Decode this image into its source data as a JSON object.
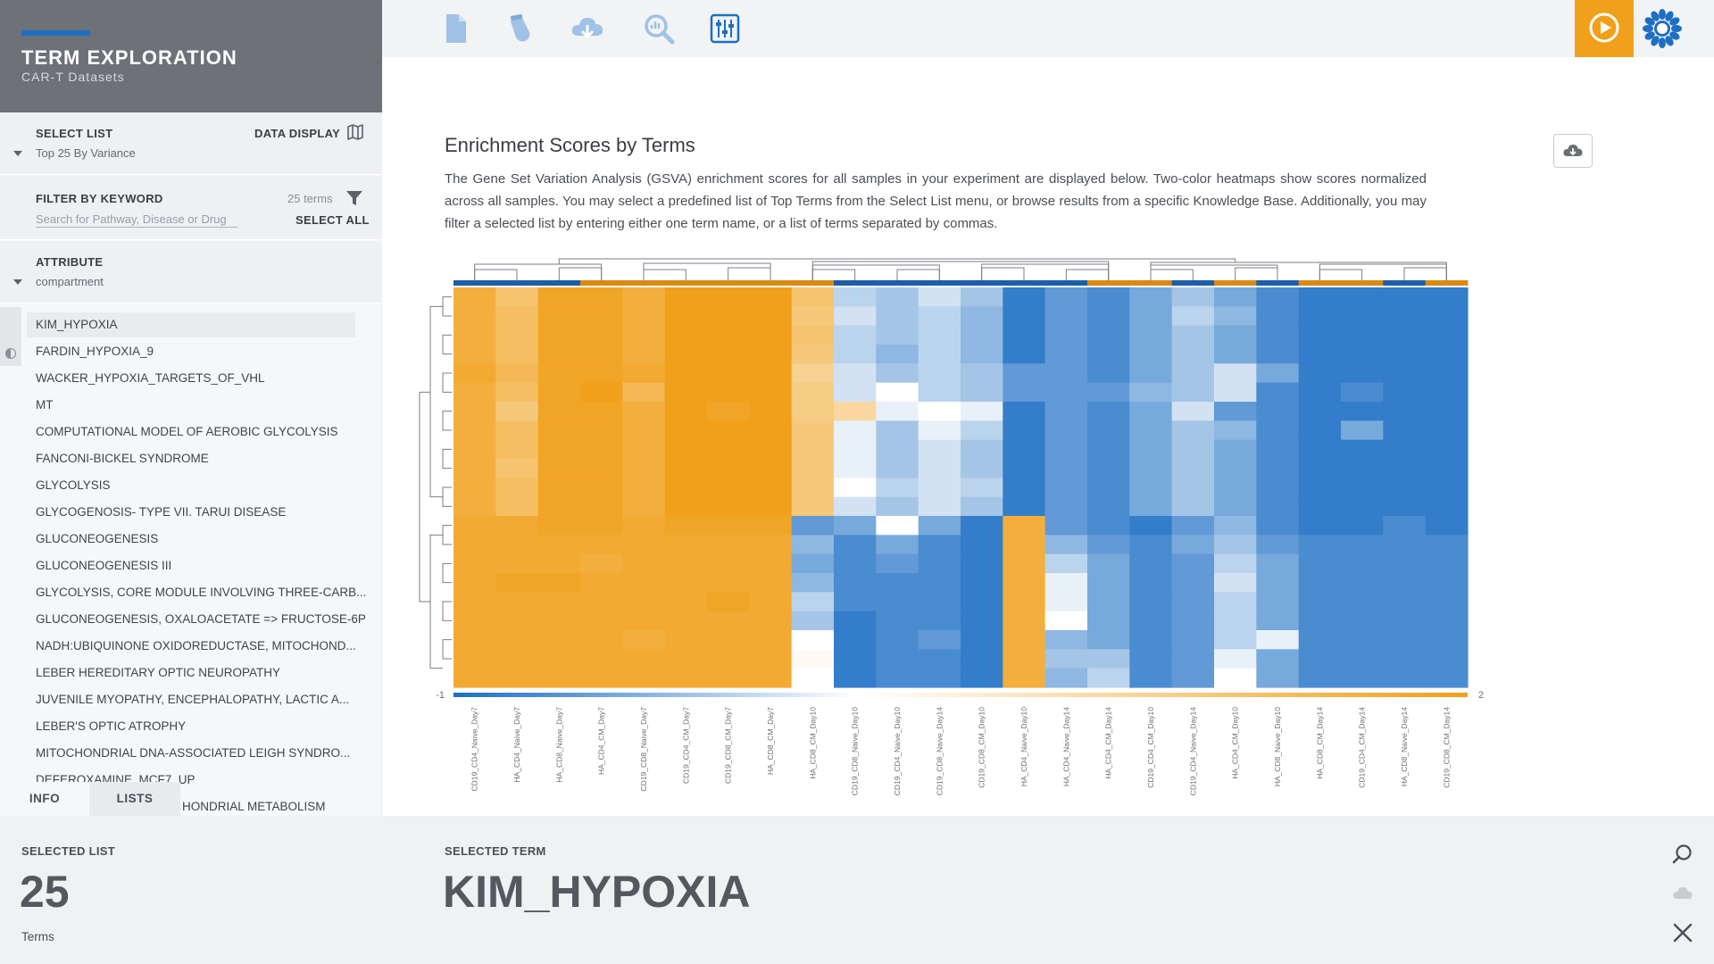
{
  "app": {
    "title": "TERM EXPLORATION",
    "subtitle": "CAR-T Datasets"
  },
  "toolbar": {
    "icons": [
      "document-icon",
      "flask-icon",
      "cloud-download-icon",
      "zoom-chart-icon",
      "sliders-icon"
    ],
    "accent_color": "#f0a01a",
    "brand_color": "#1d6fc4"
  },
  "sidebar": {
    "select_list": {
      "label": "SELECT LIST",
      "value": "Top 25 By Variance"
    },
    "data_display": {
      "label": "DATA DISPLAY"
    },
    "filter": {
      "label": "FILTER BY KEYWORD",
      "count": "25 terms",
      "placeholder": "Search for Pathway, Disease or Drug",
      "select_all": "SELECT ALL"
    },
    "attribute": {
      "label": "ATTRIBUTE",
      "value": "compartment"
    },
    "terms": [
      "KIM_HYPOXIA",
      "FARDIN_HYPOXIA_9",
      "WACKER_HYPOXIA_TARGETS_OF_VHL",
      "MT",
      "COMPUTATIONAL MODEL OF AEROBIC GLYCOLYSIS",
      "FANCONI-BICKEL SYNDROME",
      "GLYCOLYSIS",
      "GLYCOGENOSIS- TYPE VII. TARUI DISEASE",
      "GLUCONEOGENESIS",
      "GLUCONEOGENESIS III",
      "GLYCOLYSIS, CORE MODULE INVOLVING THREE-CARB...",
      "GLUCONEOGENESIS, OXALOACETATE => FRUCTOSE-6P",
      "NADH:UBIQUINONE OXIDOREDUCTASE, MITOCHOND...",
      "LEBER HEREDITARY OPTIC NEUROPATHY",
      "JUVENILE MYOPATHY, ENCEPHALOPATHY, LACTIC A...",
      "LEBER'S OPTIC ATROPHY",
      "MITOCHONDRIAL DNA-ASSOCIATED LEIGH SYNDRO...",
      "DEFEROXAMINE_MCF7_UP",
      "HONDRIAL METABOLISM"
    ],
    "selected_term_index": 0,
    "tabs": [
      "INFO",
      "LISTS"
    ]
  },
  "main": {
    "title": "Enrichment Scores by Terms",
    "description": "The Gene Set Variation Analysis (GSVA) enrichment scores for all samples in your experiment are displayed below. Two-color heatmaps show scores normalized across all samples. You may select a predefined list of Top Terms from the Select List menu, or browse results from a specific Knowledge Base. Additionally, you may filter a selected list by entering either one term name, or a list of terms separated by commas."
  },
  "chart_data": {
    "type": "heatmap",
    "title": "",
    "colorbar": {
      "min": -1,
      "max": 2,
      "min_label": "-1",
      "max_label": "2",
      "low_color": "#1d6fc4",
      "mid_color": "#ffffff",
      "high_color": "#f0a01a"
    },
    "columns": [
      "CD19_CD4_Naive_Day7",
      "HA_CD4_Naive_Day7",
      "HA_CD8_Naive_Day7",
      "HA_CD4_CM_Day7",
      "CD19_CD8_Naive_Day7",
      "CD19_CD4_CM_Day7",
      "CD19_CD8_CM_Day7",
      "HA_CD8_CM_Day7",
      "HA_CD8_CM_Day10",
      "CD19_CD8_Naive_Day10",
      "CD19_CD4_Naive_Day10",
      "CD19_CD8_Naive_Day14",
      "CD19_CD8_CM_Day10",
      "HA_CD4_Naive_Day10",
      "HA_CD4_Naive_Day14",
      "HA_CD4_CM_Day14",
      "CD19_CD4_CM_Day10",
      "CD19_CD4_Naive_Day14",
      "HA_CD4_CM_Day10",
      "HA_CD8_Naive_Day10",
      "HA_CD8_CM_Day14",
      "CD19_CD4_CM_Day14",
      "HA_CD8_Naive_Day14",
      "CD19_CD8_CM_Day14"
    ],
    "column_groups": [
      "blue",
      "blue",
      "blue",
      "orange",
      "orange",
      "orange",
      "orange",
      "orange",
      "orange",
      "blue",
      "blue",
      "blue",
      "blue",
      "blue",
      "blue",
      "orange",
      "orange",
      "blue",
      "orange",
      "blue",
      "orange",
      "orange",
      "blue",
      "orange"
    ],
    "values": [
      [
        1.6,
        1.2,
        1.8,
        1.8,
        1.6,
        1.9,
        1.9,
        1.9,
        1.2,
        -0.3,
        -0.4,
        -0.2,
        -0.4,
        -0.9,
        -0.7,
        -0.8,
        -0.6,
        -0.4,
        -0.6,
        -0.8,
        -0.9,
        -0.9,
        -0.9,
        -0.9
      ],
      [
        1.6,
        1.3,
        1.8,
        1.8,
        1.6,
        1.9,
        1.9,
        1.9,
        1.1,
        -0.2,
        -0.4,
        -0.3,
        -0.5,
        -0.9,
        -0.7,
        -0.8,
        -0.6,
        -0.3,
        -0.5,
        -0.8,
        -0.9,
        -0.9,
        -0.9,
        -0.9
      ],
      [
        1.6,
        1.3,
        1.8,
        1.8,
        1.6,
        1.9,
        1.9,
        1.9,
        1.2,
        -0.3,
        -0.4,
        -0.3,
        -0.5,
        -0.9,
        -0.7,
        -0.8,
        -0.6,
        -0.4,
        -0.6,
        -0.8,
        -0.9,
        -0.9,
        -0.9,
        -0.9
      ],
      [
        1.6,
        1.3,
        1.8,
        1.8,
        1.6,
        1.9,
        1.9,
        1.9,
        1.1,
        -0.3,
        -0.5,
        -0.3,
        -0.5,
        -0.9,
        -0.7,
        -0.8,
        -0.6,
        -0.4,
        -0.6,
        -0.8,
        -0.9,
        -0.9,
        -0.9,
        -0.9
      ],
      [
        1.7,
        1.4,
        1.8,
        1.8,
        1.7,
        1.9,
        1.9,
        1.9,
        0.9,
        -0.2,
        -0.4,
        -0.3,
        -0.4,
        -0.7,
        -0.7,
        -0.8,
        -0.6,
        -0.4,
        -0.2,
        -0.6,
        -0.9,
        -0.9,
        -0.9,
        -0.9
      ],
      [
        1.6,
        1.3,
        1.8,
        1.9,
        1.4,
        1.9,
        1.9,
        1.9,
        1.0,
        -0.2,
        0.0,
        -0.3,
        -0.4,
        -0.7,
        -0.7,
        -0.7,
        -0.5,
        -0.4,
        -0.2,
        -0.8,
        -0.9,
        -0.8,
        -0.9,
        -0.9
      ],
      [
        1.6,
        1.1,
        1.8,
        1.8,
        1.6,
        1.9,
        1.8,
        1.9,
        1.0,
        0.8,
        -0.1,
        0.0,
        -0.1,
        -0.9,
        -0.7,
        -0.8,
        -0.6,
        -0.2,
        -0.7,
        -0.8,
        -0.9,
        -0.9,
        -0.9,
        -0.9
      ],
      [
        1.6,
        1.3,
        1.8,
        1.8,
        1.6,
        1.9,
        1.9,
        1.9,
        1.1,
        -0.1,
        -0.4,
        -0.1,
        -0.3,
        -0.9,
        -0.7,
        -0.8,
        -0.6,
        -0.4,
        -0.5,
        -0.8,
        -0.9,
        -0.6,
        -0.9,
        -0.9
      ],
      [
        1.6,
        1.3,
        1.8,
        1.8,
        1.6,
        1.9,
        1.9,
        1.9,
        1.1,
        -0.1,
        -0.4,
        -0.2,
        -0.4,
        -0.9,
        -0.7,
        -0.8,
        -0.6,
        -0.4,
        -0.6,
        -0.8,
        -0.9,
        -0.9,
        -0.9,
        -0.9
      ],
      [
        1.6,
        1.2,
        1.8,
        1.8,
        1.6,
        1.9,
        1.9,
        1.9,
        1.1,
        -0.1,
        -0.4,
        -0.2,
        -0.4,
        -0.9,
        -0.7,
        -0.8,
        -0.6,
        -0.4,
        -0.6,
        -0.8,
        -0.9,
        -0.9,
        -0.9,
        -0.9
      ],
      [
        1.6,
        1.3,
        1.8,
        1.8,
        1.6,
        1.9,
        1.9,
        1.9,
        1.1,
        0.0,
        -0.3,
        -0.2,
        -0.3,
        -0.9,
        -0.7,
        -0.8,
        -0.6,
        -0.4,
        -0.6,
        -0.8,
        -0.9,
        -0.9,
        -0.9,
        -0.9
      ],
      [
        1.6,
        1.3,
        1.8,
        1.8,
        1.6,
        1.9,
        1.9,
        1.9,
        1.1,
        -0.2,
        -0.4,
        -0.2,
        -0.4,
        -0.9,
        -0.7,
        -0.8,
        -0.6,
        -0.4,
        -0.6,
        -0.8,
        -0.9,
        -0.9,
        -0.9,
        -0.9
      ],
      [
        1.7,
        1.7,
        1.8,
        1.8,
        1.7,
        1.8,
        1.8,
        1.8,
        -0.7,
        -0.6,
        0.0,
        -0.6,
        -0.9,
        1.6,
        -0.7,
        -0.8,
        -0.9,
        -0.7,
        -0.5,
        -0.8,
        -0.9,
        -0.9,
        -0.8,
        -0.9
      ],
      [
        1.7,
        1.7,
        1.7,
        1.7,
        1.7,
        1.7,
        1.7,
        1.7,
        -0.5,
        -0.8,
        -0.6,
        -0.8,
        -0.9,
        1.6,
        -0.5,
        -0.7,
        -0.8,
        -0.6,
        -0.4,
        -0.7,
        -0.8,
        -0.8,
        -0.8,
        -0.8
      ],
      [
        1.7,
        1.7,
        1.7,
        1.6,
        1.7,
        1.7,
        1.7,
        1.7,
        -0.6,
        -0.8,
        -0.7,
        -0.8,
        -0.9,
        1.6,
        -0.3,
        -0.6,
        -0.8,
        -0.7,
        -0.3,
        -0.6,
        -0.8,
        -0.8,
        -0.8,
        -0.8
      ],
      [
        1.7,
        1.8,
        1.8,
        1.7,
        1.7,
        1.7,
        1.7,
        1.7,
        -0.5,
        -0.8,
        -0.8,
        -0.8,
        -0.9,
        1.6,
        -0.1,
        -0.6,
        -0.8,
        -0.7,
        -0.2,
        -0.6,
        -0.8,
        -0.8,
        -0.8,
        -0.8
      ],
      [
        1.7,
        1.7,
        1.7,
        1.7,
        1.7,
        1.7,
        1.8,
        1.7,
        -0.3,
        -0.8,
        -0.8,
        -0.8,
        -0.9,
        1.6,
        -0.1,
        -0.6,
        -0.8,
        -0.7,
        -0.3,
        -0.6,
        -0.8,
        -0.8,
        -0.8,
        -0.8
      ],
      [
        1.7,
        1.7,
        1.7,
        1.7,
        1.7,
        1.7,
        1.7,
        1.7,
        -0.4,
        -0.9,
        -0.8,
        -0.8,
        -0.9,
        1.6,
        0.0,
        -0.6,
        -0.8,
        -0.7,
        -0.3,
        -0.6,
        -0.8,
        -0.8,
        -0.8,
        -0.8
      ],
      [
        1.7,
        1.7,
        1.7,
        1.7,
        1.6,
        1.7,
        1.7,
        1.7,
        0.0,
        -0.9,
        -0.8,
        -0.7,
        -0.9,
        1.6,
        -0.5,
        -0.6,
        -0.8,
        -0.7,
        -0.3,
        -0.1,
        -0.8,
        -0.8,
        -0.8,
        -0.8
      ],
      [
        1.7,
        1.7,
        1.7,
        1.7,
        1.7,
        1.7,
        1.7,
        1.7,
        0.1,
        -0.9,
        -0.8,
        -0.8,
        -0.9,
        1.6,
        -0.4,
        -0.4,
        -0.8,
        -0.7,
        -0.1,
        -0.6,
        -0.8,
        -0.8,
        -0.8,
        -0.8
      ],
      [
        1.7,
        1.7,
        1.7,
        1.7,
        1.7,
        1.7,
        1.7,
        1.7,
        0.0,
        -0.9,
        -0.8,
        -0.8,
        -0.9,
        1.6,
        -0.5,
        -0.3,
        -0.8,
        -0.7,
        0.0,
        -0.6,
        -0.8,
        -0.8,
        -0.8,
        -0.8
      ]
    ]
  },
  "bottom": {
    "selected_list_label": "SELECTED LIST",
    "selected_list_count": "25",
    "selected_list_unit": "Terms",
    "selected_term_label": "SELECTED TERM",
    "selected_term_value": "KIM_HYPOXIA"
  }
}
